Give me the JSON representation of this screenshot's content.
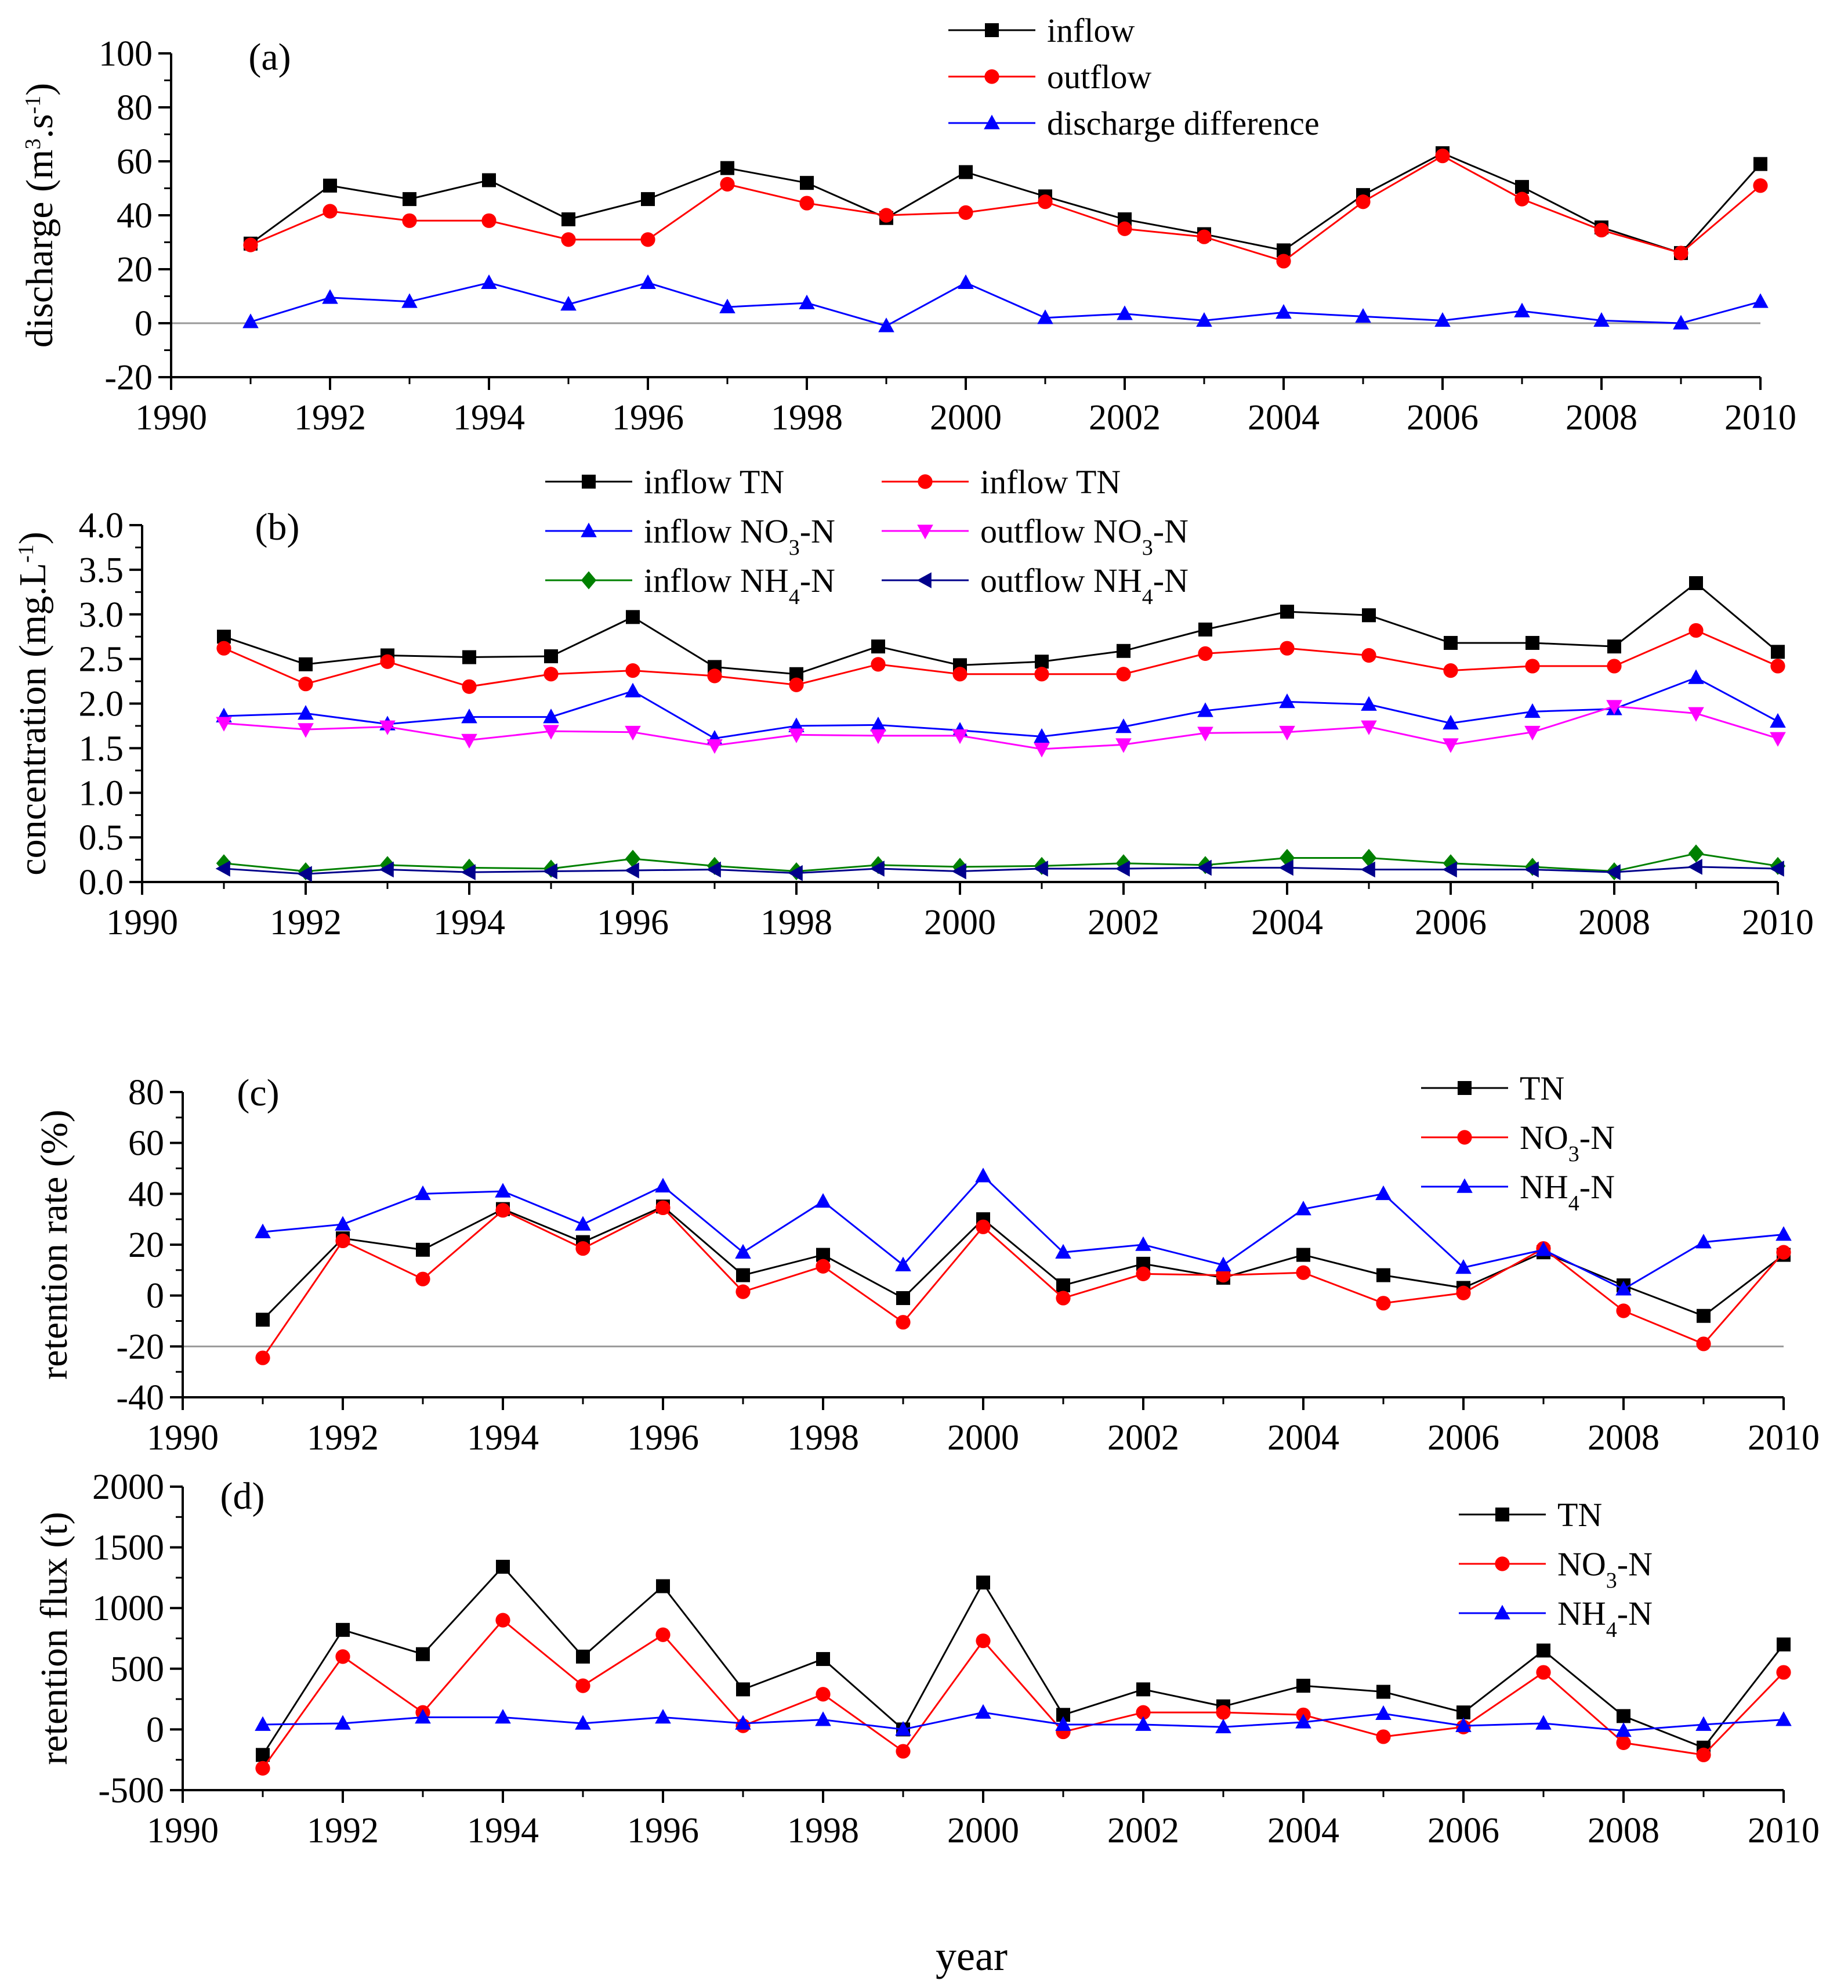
{
  "figure": {
    "xlabel": "year"
  },
  "chart_data": [
    {
      "type": "line",
      "id": "a",
      "panel_label": "(a)",
      "ylabel": {
        "main": "discharge (m",
        "sup1": "3",
        "mid": ".s",
        "sup2": "-1",
        "end": ")"
      },
      "xlim": [
        1990,
        2010
      ],
      "ylim": [
        -20,
        100
      ],
      "xticks": [
        1990,
        1992,
        1994,
        1996,
        1998,
        2000,
        2002,
        2004,
        2006,
        2008,
        2010
      ],
      "yticks": [
        -20,
        0,
        20,
        40,
        60,
        80,
        100
      ],
      "zero_line": 0,
      "legend_position": "top-center",
      "x": [
        1991,
        1992,
        1993,
        1994,
        1995,
        1996,
        1997,
        1998,
        1999,
        2000,
        2001,
        2002,
        2003,
        2004,
        2005,
        2006,
        2007,
        2008,
        2009,
        2010
      ],
      "series": [
        {
          "name": "inflow",
          "label": {
            "main": "inflow"
          },
          "color": "#000000",
          "marker": "square",
          "values": [
            29.5,
            51,
            46,
            53,
            38.5,
            46,
            57.5,
            52,
            39,
            56,
            47,
            38.5,
            33,
            27,
            47.5,
            63,
            50.5,
            35.5,
            26,
            59
          ]
        },
        {
          "name": "outflow",
          "label": {
            "main": "outflow"
          },
          "color": "#ff0000",
          "marker": "circle",
          "values": [
            29,
            41.5,
            38,
            38,
            31,
            31,
            51.5,
            44.5,
            40,
            41,
            45,
            35,
            32,
            23,
            45,
            62,
            46,
            34.5,
            26,
            51
          ]
        },
        {
          "name": "discharge difference",
          "label": {
            "main": "discharge difference"
          },
          "color": "#0000ff",
          "marker": "triangle-up",
          "values": [
            0.5,
            9.5,
            8,
            15,
            7,
            15,
            6,
            7.5,
            -1,
            15,
            2,
            3.5,
            1,
            4,
            2.5,
            1,
            4.5,
            1,
            0,
            8
          ]
        }
      ]
    },
    {
      "type": "line",
      "id": "b",
      "panel_label": "(b)",
      "ylabel": {
        "main": "concentration (mg.L",
        "sup1": "-1",
        "end": ")"
      },
      "xlim": [
        1990,
        2010
      ],
      "ylim": [
        0,
        4
      ],
      "xticks": [
        1990,
        1992,
        1994,
        1996,
        1998,
        2000,
        2002,
        2004,
        2006,
        2008,
        2010
      ],
      "yticks": [
        "0.0",
        "0.5",
        "1.0",
        "1.5",
        "2.0",
        "2.5",
        "3.0",
        "3.5",
        "4.0"
      ],
      "legend_position": "top-center, two columns",
      "x": [
        1991,
        1992,
        1993,
        1994,
        1995,
        1996,
        1997,
        1998,
        1999,
        2000,
        2001,
        2002,
        2003,
        2004,
        2005,
        2006,
        2007,
        2008,
        2009,
        2010
      ],
      "series": [
        {
          "name": "inflow TN",
          "label": {
            "main": "inflow TN"
          },
          "color": "#000000",
          "marker": "square",
          "values": [
            2.75,
            2.44,
            2.54,
            2.52,
            2.53,
            2.97,
            2.41,
            2.33,
            2.64,
            2.43,
            2.47,
            2.59,
            2.83,
            3.03,
            2.99,
            2.68,
            2.68,
            2.64,
            3.35,
            2.58
          ]
        },
        {
          "name": "inflow TN (red)",
          "label": {
            "main": "inflow TN"
          },
          "color": "#ff0000",
          "marker": "circle",
          "values": [
            2.62,
            2.22,
            2.47,
            2.19,
            2.33,
            2.37,
            2.31,
            2.21,
            2.44,
            2.33,
            2.33,
            2.33,
            2.56,
            2.62,
            2.54,
            2.37,
            2.42,
            2.42,
            2.82,
            2.42
          ]
        },
        {
          "name": "inflow NO3-N",
          "label": {
            "main": "inflow NO",
            "sub": "3",
            "end": "-N"
          },
          "color": "#0000ff",
          "marker": "triangle-up",
          "values": [
            1.86,
            1.89,
            1.77,
            1.85,
            1.85,
            2.14,
            1.61,
            1.75,
            1.76,
            1.7,
            1.63,
            1.74,
            1.92,
            2.02,
            1.99,
            1.78,
            1.91,
            1.94,
            2.29,
            1.8
          ]
        },
        {
          "name": "outflow NO3-N",
          "label": {
            "main": "outflow NO",
            "sub": "3",
            "end": "-N"
          },
          "color": "#ff00ff",
          "marker": "triangle-down",
          "values": [
            1.78,
            1.71,
            1.74,
            1.59,
            1.69,
            1.68,
            1.53,
            1.65,
            1.64,
            1.64,
            1.49,
            1.54,
            1.67,
            1.68,
            1.74,
            1.54,
            1.68,
            1.97,
            1.89,
            1.61
          ]
        },
        {
          "name": "inflow NH4-N",
          "label": {
            "main": "inflow NH",
            "sub": "4",
            "end": "-N"
          },
          "color": "#008000",
          "marker": "diamond",
          "values": [
            0.21,
            0.12,
            0.19,
            0.16,
            0.15,
            0.26,
            0.18,
            0.12,
            0.19,
            0.17,
            0.18,
            0.21,
            0.19,
            0.27,
            0.27,
            0.21,
            0.17,
            0.12,
            0.32,
            0.18
          ]
        },
        {
          "name": "outflow NH4-N",
          "label": {
            "main": "outflow NH",
            "sub": "4",
            "end": "-N"
          },
          "color": "#00008b",
          "marker": "triangle-left",
          "values": [
            0.15,
            0.09,
            0.14,
            0.11,
            0.12,
            0.13,
            0.14,
            0.1,
            0.15,
            0.12,
            0.15,
            0.15,
            0.16,
            0.16,
            0.14,
            0.14,
            0.14,
            0.11,
            0.17,
            0.15
          ]
        }
      ]
    },
    {
      "type": "line",
      "id": "c",
      "panel_label": "(c)",
      "ylabel": {
        "main": "retention rate (%)"
      },
      "xlim": [
        1990,
        2010
      ],
      "ylim": [
        -40,
        80
      ],
      "xticks": [
        1990,
        1992,
        1994,
        1996,
        1998,
        2000,
        2002,
        2004,
        2006,
        2008,
        2010
      ],
      "yticks": [
        -40,
        -20,
        0,
        20,
        40,
        60,
        80
      ],
      "zero_line": -20,
      "legend_position": "top-right",
      "x": [
        1991,
        1992,
        1993,
        1994,
        1995,
        1996,
        1997,
        1998,
        1999,
        2000,
        2001,
        2002,
        2003,
        2004,
        2005,
        2006,
        2007,
        2008,
        2009,
        2010
      ],
      "series": [
        {
          "name": "TN",
          "label": {
            "main": "TN"
          },
          "color": "#000000",
          "marker": "square",
          "values": [
            -9.5,
            22.5,
            18,
            34,
            21,
            35,
            8,
            16,
            -1,
            30,
            4,
            12.5,
            7,
            16,
            8,
            3,
            17,
            4,
            -8,
            16
          ]
        },
        {
          "name": "NO3-N",
          "label": {
            "main": "NO",
            "sub": "3",
            "end": "-N"
          },
          "color": "#ff0000",
          "marker": "circle",
          "values": [
            -24.5,
            21.5,
            6.5,
            33.5,
            18.5,
            34.5,
            1.5,
            11.5,
            -10.5,
            27,
            -1,
            8.5,
            8,
            9,
            -3,
            1,
            18.5,
            -6,
            -19,
            17
          ]
        },
        {
          "name": "NH4-N",
          "label": {
            "main": "NH",
            "sub": "4",
            "end": "-N"
          },
          "color": "#0000ff",
          "marker": "triangle-up",
          "values": [
            25,
            28,
            40,
            41,
            28,
            43,
            17,
            37,
            12,
            47,
            17,
            20,
            12,
            34,
            40,
            11,
            18,
            2.5,
            21,
            24
          ]
        }
      ]
    },
    {
      "type": "line",
      "id": "d",
      "panel_label": "(d)",
      "ylabel": {
        "main": "retention flux (t)"
      },
      "xlim": [
        1990,
        2010
      ],
      "ylim": [
        -500,
        2000
      ],
      "xticks": [
        1990,
        1992,
        1994,
        1996,
        1998,
        2000,
        2002,
        2004,
        2006,
        2008,
        2010
      ],
      "yticks": [
        -500,
        0,
        500,
        1000,
        1500,
        2000
      ],
      "legend_position": "top-right",
      "x": [
        1991,
        1992,
        1993,
        1994,
        1995,
        1996,
        1997,
        1998,
        1999,
        2000,
        2001,
        2002,
        2003,
        2004,
        2005,
        2006,
        2007,
        2008,
        2009,
        2010
      ],
      "series": [
        {
          "name": "TN",
          "label": {
            "main": "TN"
          },
          "color": "#000000",
          "marker": "square",
          "values": [
            -210,
            820,
            620,
            1340,
            600,
            1180,
            330,
            580,
            0,
            1210,
            120,
            330,
            190,
            360,
            310,
            140,
            650,
            110,
            -150,
            700
          ]
        },
        {
          "name": "NO3-N",
          "label": {
            "main": "NO",
            "sub": "3",
            "end": "-N"
          },
          "color": "#ff0000",
          "marker": "circle",
          "values": [
            -320,
            600,
            140,
            900,
            360,
            780,
            30,
            290,
            -180,
            730,
            -20,
            140,
            140,
            120,
            -60,
            20,
            470,
            -110,
            -210,
            470
          ]
        },
        {
          "name": "NH4-N",
          "label": {
            "main": "NH",
            "sub": "4",
            "end": "-N"
          },
          "color": "#0000ff",
          "marker": "triangle-up",
          "values": [
            40,
            50,
            100,
            100,
            50,
            100,
            50,
            80,
            0,
            140,
            40,
            40,
            20,
            60,
            130,
            30,
            50,
            -10,
            40,
            80
          ]
        }
      ]
    }
  ]
}
